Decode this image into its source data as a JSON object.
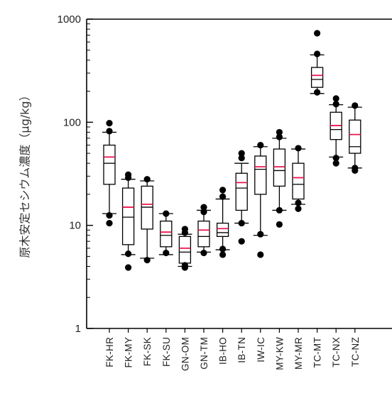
{
  "chart_data": {
    "type": "box",
    "ylabel": "原木安定セシウム濃度（µg/kg）",
    "y_scale": "log",
    "ylim": [
      1,
      1000
    ],
    "y_ticks": [
      {
        "value": 1,
        "label": "1"
      },
      {
        "value": 10,
        "label": "10"
      },
      {
        "value": 100,
        "label": "100"
      },
      {
        "value": 1000,
        "label": "1000"
      }
    ],
    "colors": {
      "box": "#000000",
      "mean": "#e8174f",
      "median": "#000000"
    },
    "categories": [
      "FK-HR",
      "FK-MY",
      "FK-SK",
      "FK-SU",
      "GN-OM",
      "GN-TM",
      "IB-HO",
      "IB-TN",
      "IW-IC",
      "MY-KW",
      "MY-MR",
      "TC-MT",
      "TC-NX",
      "TC-NZ"
    ],
    "boxes": [
      {
        "whisker_low": 13,
        "q1": 25,
        "median": 40,
        "mean": 46,
        "q3": 60,
        "whisker_high": 80,
        "outliers": [
          10.5,
          12.5,
          82,
          98
        ]
      },
      {
        "whisker_low": 5.2,
        "q1": 6.5,
        "median": 12,
        "mean": 15,
        "q3": 23,
        "whisker_high": 28,
        "outliers": [
          3.9,
          5.3,
          29,
          31
        ]
      },
      {
        "whisker_low": 4.8,
        "q1": 9.2,
        "median": 15,
        "mean": 16,
        "q3": 24,
        "whisker_high": 27,
        "outliers": [
          4.6,
          28
        ]
      },
      {
        "whisker_low": 5.2,
        "q1": 6.2,
        "median": 8,
        "mean": 8.6,
        "q3": 11,
        "whisker_high": 13,
        "outliers": [
          5.4,
          13
        ]
      },
      {
        "whisker_low": 4.0,
        "q1": 4.3,
        "median": 5.5,
        "mean": 6,
        "q3": 7.8,
        "whisker_high": 8.2,
        "outliers": [
          3.9,
          4.1,
          8.5,
          9.2
        ]
      },
      {
        "whisker_low": 5.5,
        "q1": 6.2,
        "median": 7.8,
        "mean": 9,
        "q3": 11,
        "whisker_high": 14,
        "outliers": [
          5.4,
          13.5,
          15
        ]
      },
      {
        "whisker_low": 5.8,
        "q1": 7.8,
        "median": 8.5,
        "mean": 9.3,
        "q3": 10.5,
        "whisker_high": 18,
        "outliers": [
          5.2,
          5.9,
          19,
          22
        ]
      },
      {
        "whisker_low": 10.5,
        "q1": 14,
        "median": 23,
        "mean": 26,
        "q3": 32,
        "whisker_high": 40,
        "outliers": [
          7,
          10.5,
          45,
          50
        ]
      },
      {
        "whisker_low": 8,
        "q1": 20,
        "median": 35,
        "mean": 37,
        "q3": 47,
        "whisker_high": 58,
        "outliers": [
          5.2,
          8.2,
          60
        ]
      },
      {
        "whisker_low": 14,
        "q1": 24,
        "median": 34,
        "mean": 37,
        "q3": 55,
        "whisker_high": 70,
        "outliers": [
          10.2,
          14,
          72,
          80
        ]
      },
      {
        "whisker_low": 16,
        "q1": 18,
        "median": 25,
        "mean": 29,
        "q3": 40,
        "whisker_high": 55,
        "outliers": [
          14.5,
          16.5,
          56
        ]
      },
      {
        "whisker_low": 190,
        "q1": 218,
        "median": 260,
        "mean": 285,
        "q3": 340,
        "whisker_high": 450,
        "outliers": [
          195,
          460,
          730
        ]
      },
      {
        "whisker_low": 46,
        "q1": 68,
        "median": 85,
        "mean": 93,
        "q3": 125,
        "whisker_high": 148,
        "outliers": [
          40,
          45,
          150,
          170
        ]
      },
      {
        "whisker_low": 36,
        "q1": 50,
        "median": 58,
        "mean": 76,
        "q3": 105,
        "whisker_high": 140,
        "outliers": [
          34,
          36,
          145
        ]
      }
    ]
  }
}
